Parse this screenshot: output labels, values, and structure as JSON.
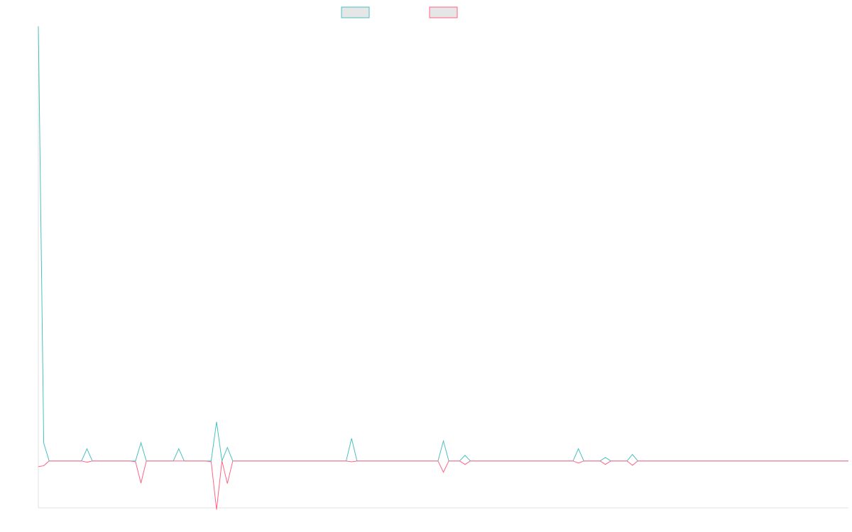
{
  "chart_data": {
    "type": "line",
    "ylim": [
      -10.8,
      100
    ],
    "series": [
      {
        "color": "#4bc0c0",
        "values": [
          100,
          4.1,
          0,
          0,
          0,
          0,
          0,
          0,
          0,
          2.8,
          0,
          0,
          0,
          0,
          0,
          0,
          0,
          0,
          0,
          4.2,
          0,
          0,
          0,
          0,
          0,
          0,
          2.8,
          0,
          0,
          0,
          0,
          0,
          0,
          9.0,
          0,
          3.1,
          0,
          0,
          0,
          0,
          0,
          0,
          0,
          0,
          0,
          0,
          0,
          0,
          0,
          0,
          0,
          0,
          0,
          0,
          0,
          0,
          0,
          0,
          5.2,
          0,
          0,
          0,
          0,
          0,
          0,
          0,
          0,
          0,
          0,
          0,
          0,
          0,
          0,
          0,
          0,
          4.6,
          0,
          0,
          0,
          1.3,
          0,
          0,
          0,
          0,
          0,
          0,
          0,
          0,
          0,
          0,
          0,
          0,
          0,
          0,
          0,
          0,
          0,
          0,
          0,
          0,
          2.8,
          0,
          0,
          0,
          0,
          0.8,
          0,
          0,
          0,
          0,
          1.5,
          0,
          0,
          0,
          0,
          0,
          0,
          0,
          0,
          0,
          0,
          0,
          0,
          0,
          0,
          0,
          0,
          0,
          0,
          0,
          0,
          0,
          0,
          0,
          0,
          0,
          0,
          0,
          0,
          0,
          0,
          0,
          0,
          0,
          0,
          0,
          0,
          0,
          0,
          0,
          0
        ]
      },
      {
        "color": "#ff6384",
        "values": [
          -1.3,
          -1.1,
          0,
          0,
          0,
          0,
          0,
          0,
          0,
          -0.3,
          0,
          0,
          0,
          0,
          0,
          0,
          0,
          0,
          -0.2,
          -5.1,
          0,
          0,
          0,
          0,
          0,
          0,
          0,
          0,
          0,
          0,
          0,
          0,
          -0.2,
          -11.2,
          0,
          -5.2,
          0,
          0,
          0,
          0,
          0,
          0,
          0,
          0,
          0,
          0,
          0,
          0,
          0,
          0,
          0,
          0,
          0,
          0,
          0,
          0,
          0,
          0,
          -0.2,
          0,
          0,
          0,
          0,
          0,
          0,
          0,
          0,
          0,
          0,
          0,
          0,
          0,
          0,
          0,
          0,
          -2.6,
          0,
          0,
          0,
          -0.8,
          0,
          0,
          0,
          0,
          0,
          0,
          0,
          0,
          0,
          0,
          0,
          0,
          0,
          0,
          0,
          0,
          0,
          0,
          0,
          0,
          -0.5,
          0,
          0,
          0,
          0,
          -0.8,
          0,
          0,
          0,
          0,
          -1.0,
          0,
          0,
          0,
          0,
          0,
          0,
          0,
          0,
          0,
          0,
          0,
          0,
          0,
          0,
          0,
          0,
          0,
          0,
          0,
          0,
          0,
          0,
          0,
          0,
          0,
          0,
          0,
          0,
          0,
          0,
          0,
          0,
          0,
          0,
          0,
          0,
          0,
          0,
          0,
          0
        ]
      }
    ]
  }
}
